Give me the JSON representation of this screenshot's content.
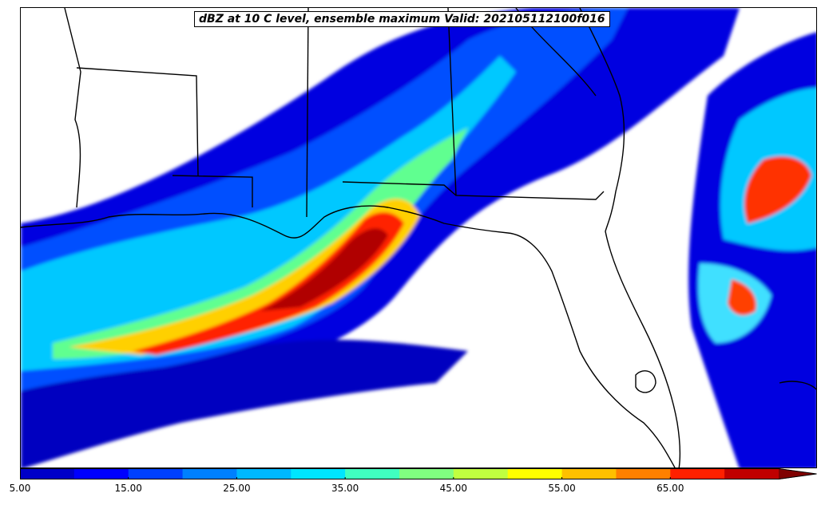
{
  "title": "dBZ at 10 C level, ensemble maximum Valid: 202105112100f016",
  "colorbar": {
    "min": 5,
    "max": 75,
    "levels": [
      5,
      10,
      15,
      20,
      25,
      30,
      35,
      40,
      45,
      50,
      55,
      60,
      65,
      70,
      75
    ],
    "colors": [
      "#0000c8",
      "#0000ff",
      "#0040ff",
      "#0080ff",
      "#00b8ff",
      "#00e5ff",
      "#40ffc0",
      "#80ff80",
      "#c0ff40",
      "#ffff00",
      "#ffc000",
      "#ff8000",
      "#ff2000",
      "#c00000"
    ],
    "extend_color": "#800000",
    "tick_labels": [
      "5.00",
      "15.00",
      "25.00",
      "35.00",
      "45.00",
      "55.00",
      "65.00"
    ],
    "tick_values": [
      5,
      15,
      25,
      35,
      45,
      55,
      65
    ],
    "extend": "max"
  },
  "map": {
    "region": "Southeastern United States and Gulf of Mexico",
    "ocean_color": "#ffffff",
    "boundary_color": "#000000"
  }
}
